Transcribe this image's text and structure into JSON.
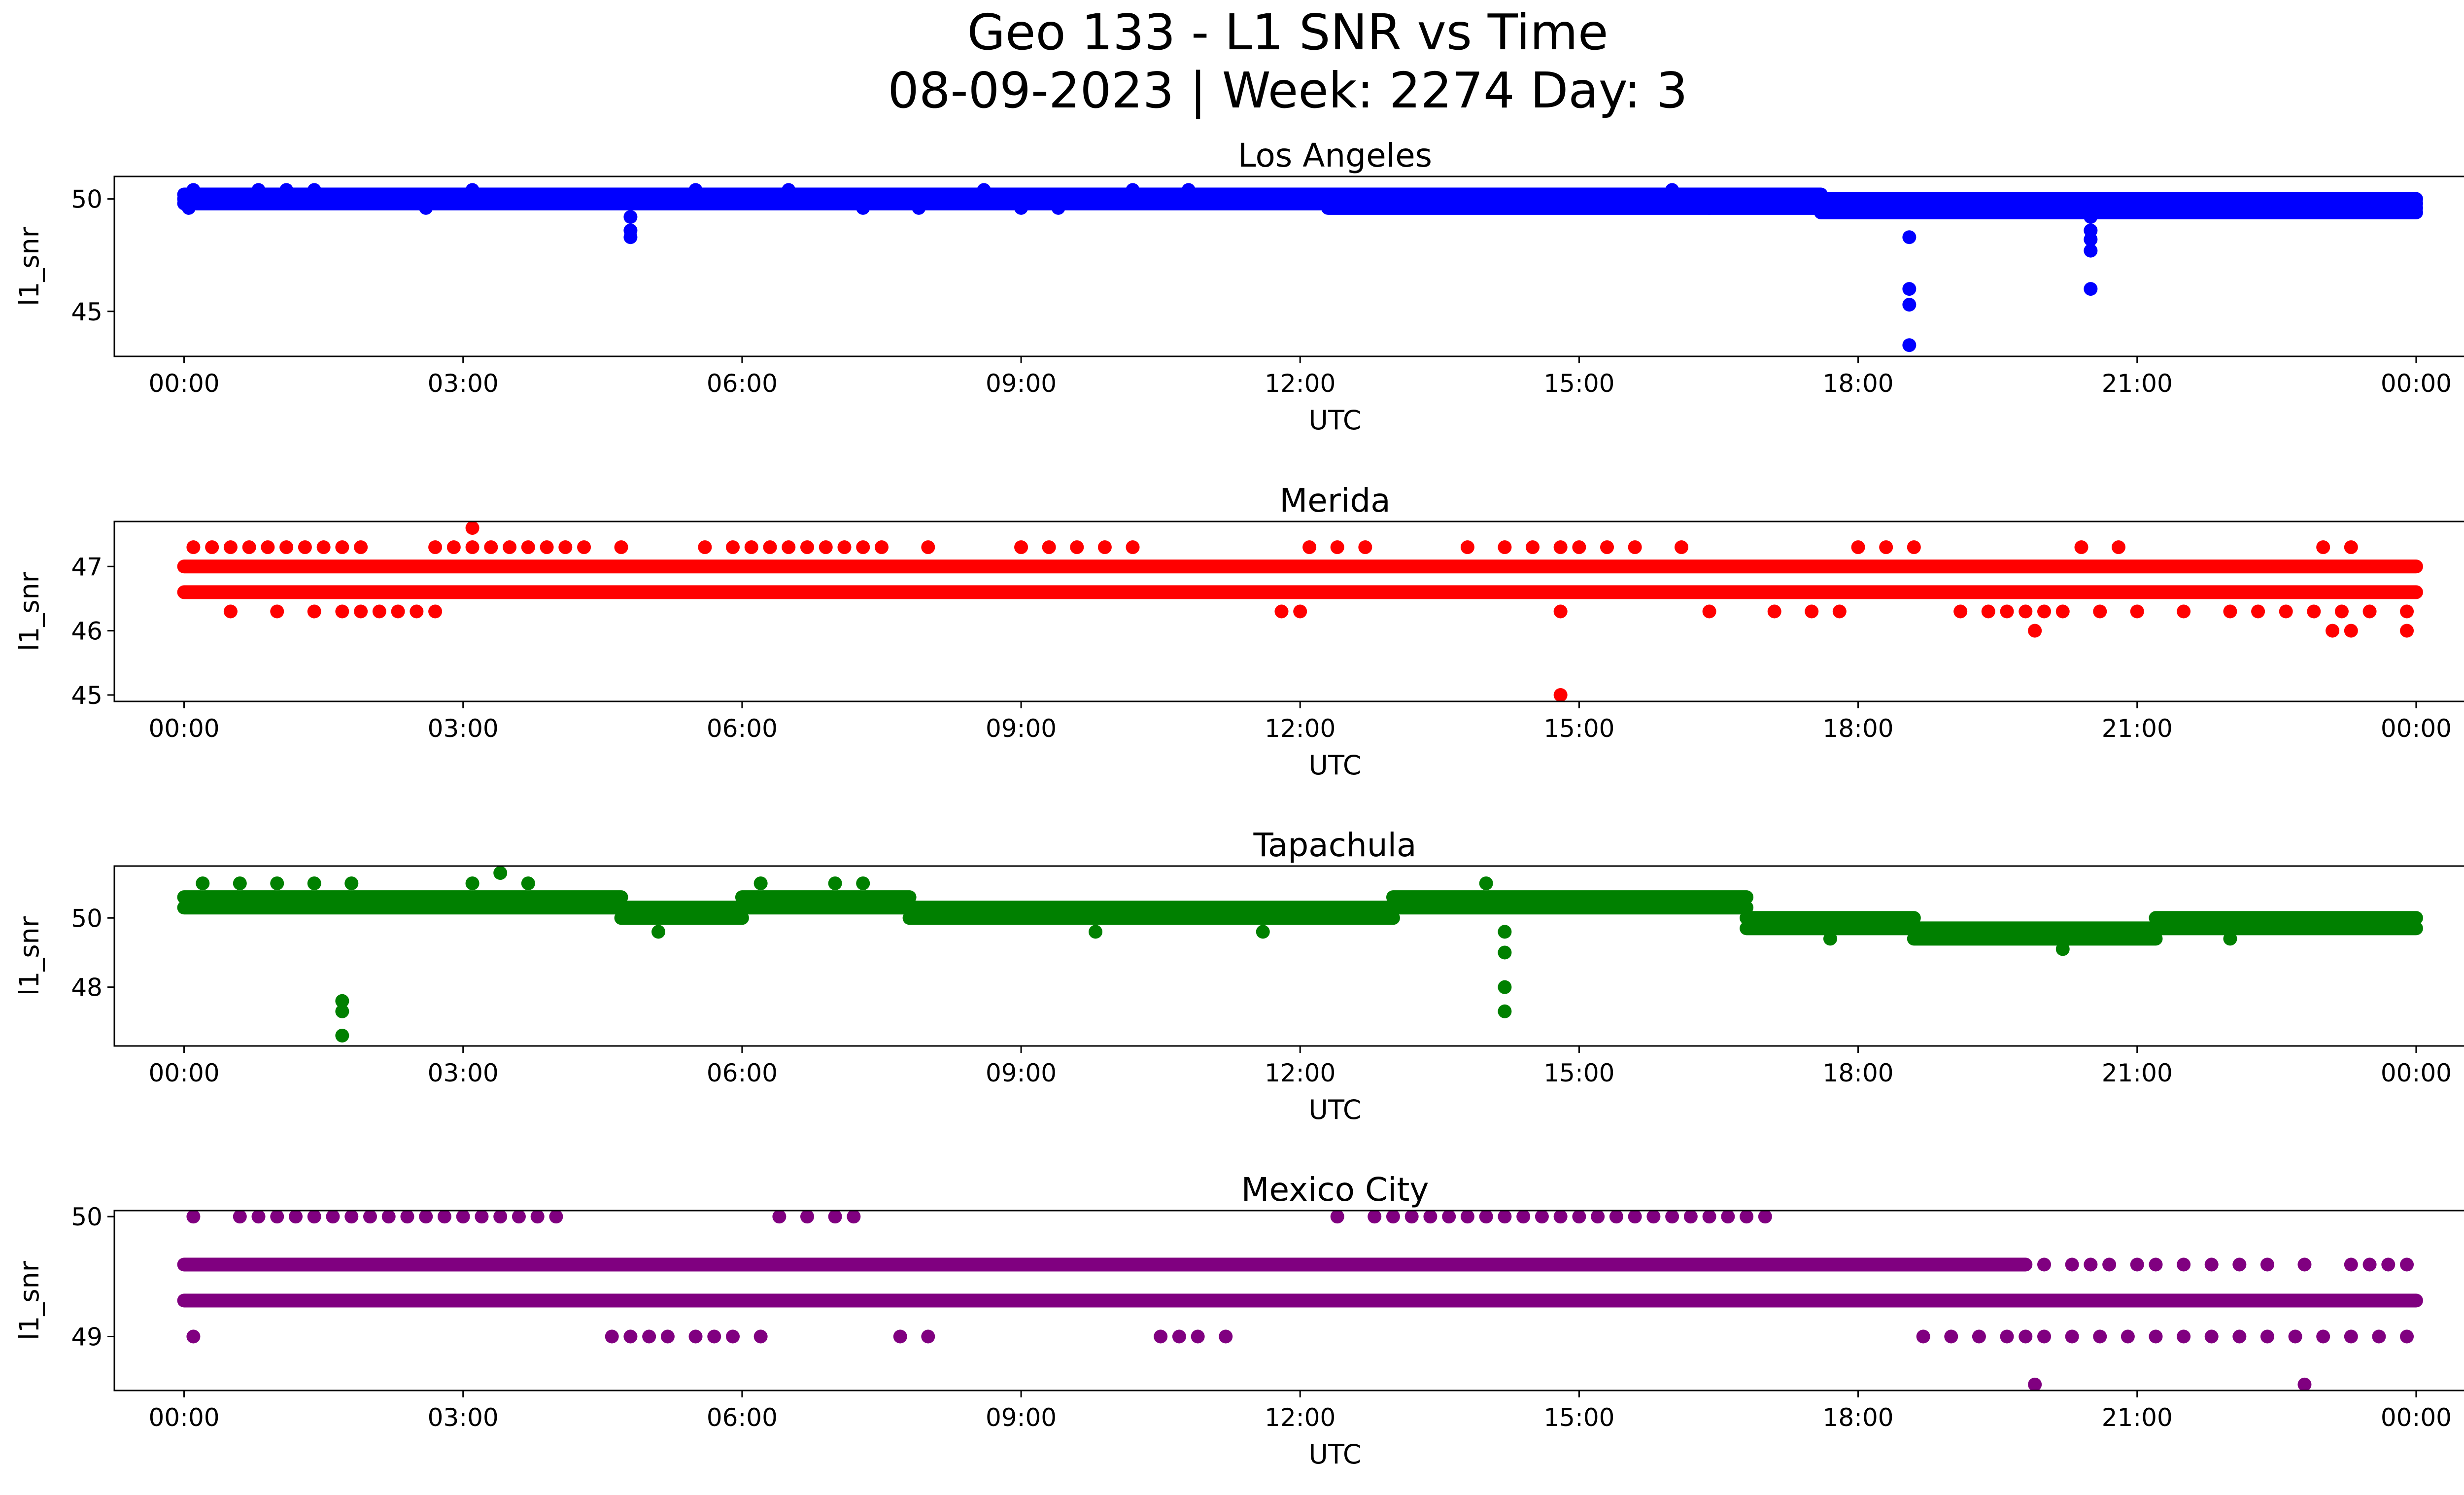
{
  "figure": {
    "title_line1": "Geo 133 - L1 SNR vs Time",
    "title_line2": "08-09-2023 | Week: 2274 Day: 3"
  },
  "chart_data": [
    {
      "type": "scatter",
      "title": "Los Angeles",
      "xlabel": "UTC",
      "ylabel": "l1_snr",
      "color": "#0000ff",
      "x_unit": "hours UTC (0–24)",
      "xlim": [
        -0.75,
        25.5
      ],
      "ylim": [
        43.0,
        51.0
      ],
      "xticks": [
        "00:00",
        "03:00",
        "06:00",
        "09:00",
        "12:00",
        "15:00",
        "18:00",
        "21:00",
        "00:00"
      ],
      "yticks": [
        45,
        50
      ],
      "bands": [
        {
          "from": 0.0,
          "to": 12.3,
          "values": [
            49.8,
            50.0,
            50.2
          ],
          "step": 0.03
        },
        {
          "from": 12.3,
          "to": 17.6,
          "values": [
            49.6,
            49.8,
            50.0,
            50.2
          ],
          "step": 0.03
        },
        {
          "from": 17.6,
          "to": 24.0,
          "values": [
            49.4,
            49.6,
            49.8,
            50.0
          ],
          "step": 0.03
        }
      ],
      "points": [
        {
          "x": 0.05,
          "y": 49.6
        },
        {
          "x": 0.1,
          "y": 50.4
        },
        {
          "x": 0.8,
          "y": 50.4
        },
        {
          "x": 1.1,
          "y": 50.4
        },
        {
          "x": 1.4,
          "y": 50.4
        },
        {
          "x": 2.6,
          "y": 49.6
        },
        {
          "x": 3.1,
          "y": 50.4
        },
        {
          "x": 4.8,
          "y": 49.2
        },
        {
          "x": 4.8,
          "y": 48.6
        },
        {
          "x": 4.8,
          "y": 48.3
        },
        {
          "x": 5.5,
          "y": 50.4
        },
        {
          "x": 6.5,
          "y": 50.4
        },
        {
          "x": 7.3,
          "y": 49.6
        },
        {
          "x": 7.9,
          "y": 49.6
        },
        {
          "x": 8.6,
          "y": 50.4
        },
        {
          "x": 9.0,
          "y": 49.6
        },
        {
          "x": 9.4,
          "y": 49.6
        },
        {
          "x": 10.2,
          "y": 50.4
        },
        {
          "x": 10.8,
          "y": 50.4
        },
        {
          "x": 16.0,
          "y": 50.4
        },
        {
          "x": 16.4,
          "y": 49.6
        },
        {
          "x": 18.55,
          "y": 48.3
        },
        {
          "x": 18.55,
          "y": 46.0
        },
        {
          "x": 18.55,
          "y": 45.3
        },
        {
          "x": 18.55,
          "y": 43.5
        },
        {
          "x": 20.5,
          "y": 49.2
        },
        {
          "x": 20.5,
          "y": 48.6
        },
        {
          "x": 20.5,
          "y": 48.2
        },
        {
          "x": 20.5,
          "y": 47.7
        },
        {
          "x": 20.5,
          "y": 46.0
        },
        {
          "x": 23.6,
          "y": 49.4
        }
      ]
    },
    {
      "type": "scatter",
      "title": "Merida",
      "xlabel": "UTC",
      "ylabel": "l1_snr",
      "color": "#ff0000",
      "x_unit": "hours UTC (0–24)",
      "xlim": [
        -0.75,
        25.5
      ],
      "ylim": [
        44.9,
        47.7
      ],
      "xticks": [
        "00:00",
        "03:00",
        "06:00",
        "09:00",
        "12:00",
        "15:00",
        "18:00",
        "21:00",
        "00:00"
      ],
      "yticks": [
        45,
        46,
        47
      ],
      "bands": [
        {
          "from": 0.0,
          "to": 24.0,
          "values": [
            47.0
          ],
          "step": 0.03
        },
        {
          "from": 0.0,
          "to": 24.0,
          "values": [
            46.6
          ],
          "step": 0.03
        }
      ],
      "point_rows": [
        {
          "y": 47.3,
          "xs": [
            0.1,
            0.3,
            0.5,
            0.7,
            0.9,
            1.1,
            1.3,
            1.5,
            1.7,
            1.9,
            2.7,
            2.9,
            3.1,
            3.3,
            3.5,
            3.7,
            3.9,
            4.1,
            4.3,
            4.7,
            5.6,
            5.9,
            6.1,
            6.3,
            6.5,
            6.7,
            6.9,
            7.1,
            7.3,
            7.5,
            8.0,
            9.0,
            9.3,
            9.6,
            9.9,
            10.2,
            12.1,
            12.4,
            12.7,
            13.8,
            14.2,
            14.5,
            14.8,
            15.0,
            15.3,
            15.6,
            16.1,
            18.0,
            18.3,
            18.6,
            20.4,
            20.8,
            23.0,
            23.3
          ]
        },
        {
          "y": 46.3,
          "xs": [
            0.5,
            1.0,
            1.4,
            1.7,
            1.9,
            2.1,
            2.3,
            2.5,
            2.7,
            11.8,
            12.0,
            14.8,
            16.4,
            17.1,
            17.5,
            17.8,
            19.1,
            19.4,
            19.6,
            19.8,
            20.0,
            20.2,
            20.6,
            21.0,
            21.5,
            22.0,
            22.3,
            22.6,
            22.9,
            23.2,
            23.5,
            23.9
          ]
        }
      ],
      "points": [
        {
          "x": 3.1,
          "y": 47.6
        },
        {
          "x": 14.8,
          "y": 45.0
        },
        {
          "x": 19.9,
          "y": 46.0
        },
        {
          "x": 23.1,
          "y": 46.0
        },
        {
          "x": 23.3,
          "y": 46.0
        },
        {
          "x": 23.9,
          "y": 46.0
        }
      ]
    },
    {
      "type": "scatter",
      "title": "Tapachula",
      "xlabel": "UTC",
      "ylabel": "l1_snr",
      "color": "#008000",
      "x_unit": "hours UTC (0–24)",
      "xlim": [
        -0.75,
        25.5
      ],
      "ylim": [
        46.3,
        51.5
      ],
      "xticks": [
        "00:00",
        "03:00",
        "06:00",
        "09:00",
        "12:00",
        "15:00",
        "18:00",
        "21:00",
        "00:00"
      ],
      "yticks": [
        48,
        50
      ],
      "bands": [
        {
          "from": 0.0,
          "to": 4.7,
          "values": [
            50.3,
            50.6
          ],
          "step": 0.03
        },
        {
          "from": 4.7,
          "to": 6.0,
          "values": [
            50.0,
            50.3
          ],
          "step": 0.03
        },
        {
          "from": 6.0,
          "to": 7.8,
          "values": [
            50.3,
            50.6
          ],
          "step": 0.03
        },
        {
          "from": 7.8,
          "to": 13.0,
          "values": [
            50.0,
            50.3
          ],
          "step": 0.03
        },
        {
          "from": 13.0,
          "to": 16.8,
          "values": [
            50.3,
            50.6
          ],
          "step": 0.03
        },
        {
          "from": 16.8,
          "to": 18.6,
          "values": [
            49.7,
            50.0
          ],
          "step": 0.03
        },
        {
          "from": 18.6,
          "to": 21.2,
          "values": [
            49.4,
            49.7
          ],
          "step": 0.03
        },
        {
          "from": 21.2,
          "to": 24.0,
          "values": [
            49.7,
            50.0
          ],
          "step": 0.03
        }
      ],
      "points": [
        {
          "x": 0.2,
          "y": 51.0
        },
        {
          "x": 0.6,
          "y": 51.0
        },
        {
          "x": 1.0,
          "y": 51.0
        },
        {
          "x": 1.4,
          "y": 51.0
        },
        {
          "x": 1.8,
          "y": 51.0
        },
        {
          "x": 3.1,
          "y": 51.0
        },
        {
          "x": 3.4,
          "y": 51.3
        },
        {
          "x": 3.7,
          "y": 51.0
        },
        {
          "x": 6.2,
          "y": 51.0
        },
        {
          "x": 7.0,
          "y": 51.0
        },
        {
          "x": 7.3,
          "y": 51.0
        },
        {
          "x": 14.0,
          "y": 51.0
        },
        {
          "x": 1.7,
          "y": 47.6
        },
        {
          "x": 1.7,
          "y": 47.3
        },
        {
          "x": 1.7,
          "y": 46.6
        },
        {
          "x": 14.2,
          "y": 49.6
        },
        {
          "x": 14.2,
          "y": 49.0
        },
        {
          "x": 14.2,
          "y": 48.0
        },
        {
          "x": 14.2,
          "y": 47.3
        },
        {
          "x": 5.1,
          "y": 49.6
        },
        {
          "x": 9.8,
          "y": 49.6
        },
        {
          "x": 11.6,
          "y": 49.6
        },
        {
          "x": 17.7,
          "y": 49.4
        },
        {
          "x": 20.2,
          "y": 49.1
        },
        {
          "x": 22.0,
          "y": 49.4
        }
      ]
    },
    {
      "type": "scatter",
      "title": "Mexico City",
      "xlabel": "UTC",
      "ylabel": "l1_snr",
      "color": "#800080",
      "x_unit": "hours UTC (0–24)",
      "xlim": [
        -0.75,
        25.5
      ],
      "ylim": [
        48.55,
        50.05
      ],
      "xticks": [
        "00:00",
        "03:00",
        "06:00",
        "09:00",
        "12:00",
        "15:00",
        "18:00",
        "21:00",
        "00:00"
      ],
      "yticks": [
        49,
        50
      ],
      "bands": [
        {
          "from": 0.0,
          "to": 19.8,
          "values": [
            49.6
          ],
          "step": 0.03
        },
        {
          "from": 0.0,
          "to": 24.0,
          "values": [
            49.3
          ],
          "step": 0.03
        }
      ],
      "point_rows": [
        {
          "y": 50.0,
          "xs": [
            0.1,
            0.6,
            0.8,
            1.0,
            1.2,
            1.4,
            1.6,
            1.8,
            2.0,
            2.2,
            2.4,
            2.6,
            2.8,
            3.0,
            3.2,
            3.4,
            3.6,
            3.8,
            4.0,
            6.4,
            6.7,
            7.0,
            7.2,
            12.4,
            12.8,
            13.0,
            13.2,
            13.4,
            13.6,
            13.8,
            14.0,
            14.2,
            14.4,
            14.6,
            14.8,
            15.0,
            15.2,
            15.4,
            15.6,
            15.8,
            16.0,
            16.2,
            16.4,
            16.6,
            16.8,
            17.0
          ]
        },
        {
          "y": 49.6,
          "xs": [
            20.0,
            20.3,
            20.5,
            20.7,
            21.0,
            21.2,
            21.5,
            21.8,
            22.1,
            22.4,
            22.8,
            23.3,
            23.5,
            23.7,
            23.9
          ]
        },
        {
          "y": 49.0,
          "xs": [
            0.1,
            4.6,
            4.8,
            5.0,
            5.2,
            5.5,
            5.7,
            5.9,
            6.2,
            7.7,
            8.0,
            10.5,
            10.7,
            10.9,
            11.2,
            18.7,
            19.0,
            19.3,
            19.6,
            19.8,
            20.0,
            20.3,
            20.6,
            20.9,
            21.2,
            21.5,
            21.8,
            22.1,
            22.4,
            22.7,
            23.0,
            23.3,
            23.6,
            23.9
          ]
        }
      ],
      "points": [
        {
          "x": 19.9,
          "y": 48.6
        },
        {
          "x": 22.8,
          "y": 48.6
        }
      ]
    }
  ]
}
